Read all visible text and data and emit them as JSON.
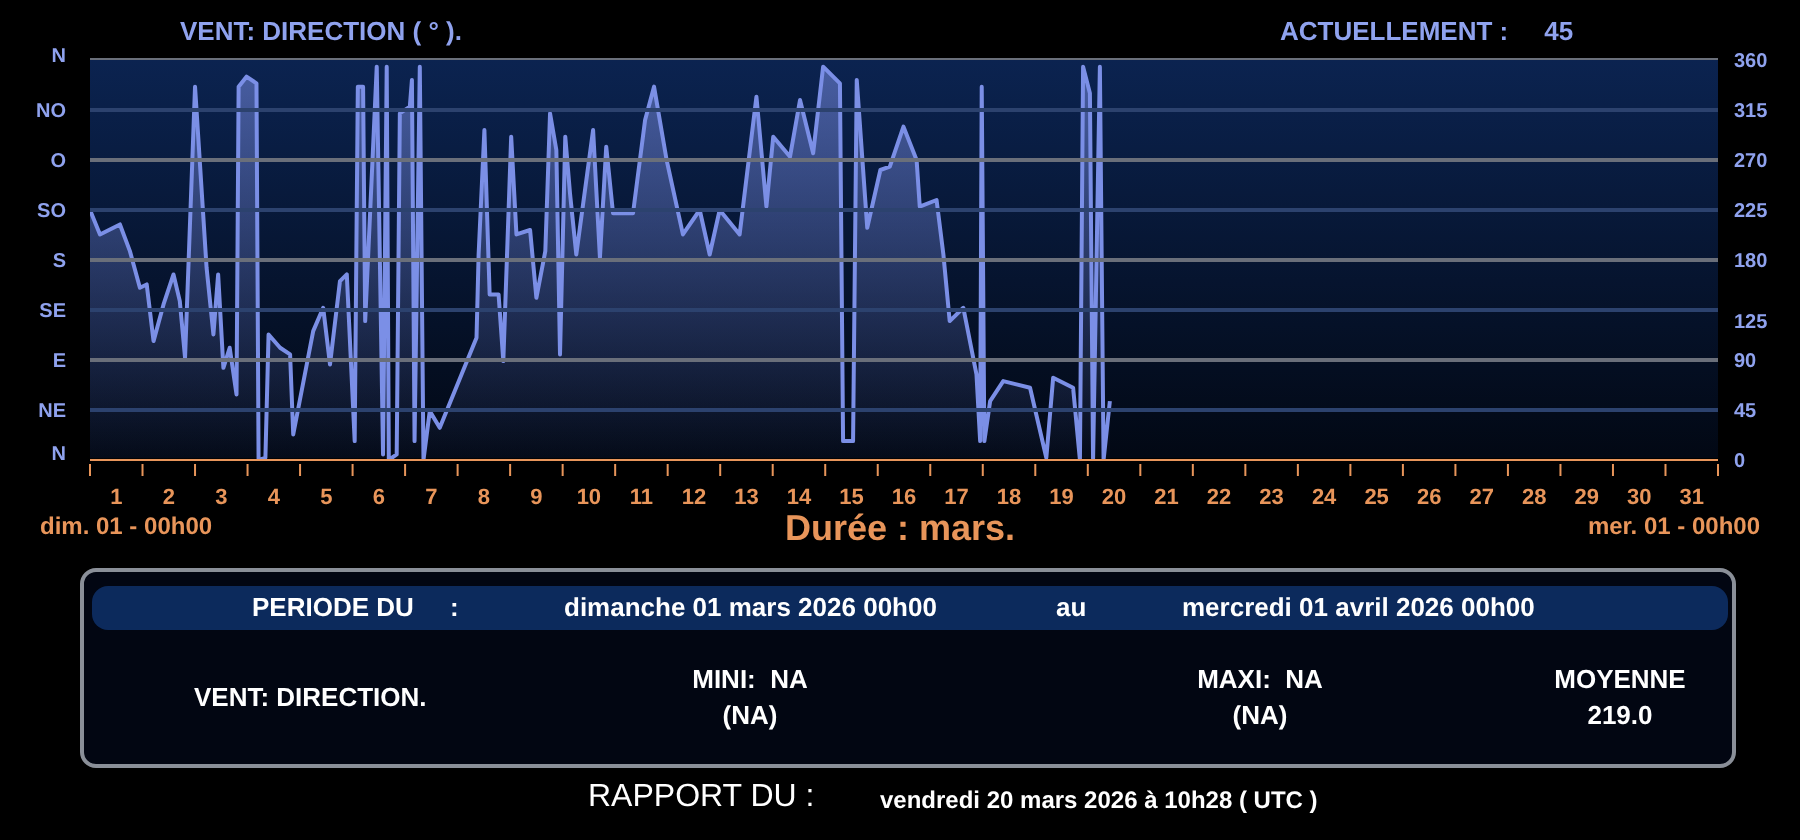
{
  "chart_data": {
    "type": "area",
    "title": "VENT: DIRECTION ( ° ).",
    "xlabel": "Durée : mars.",
    "annotations": [
      "ACTUELLEMENT :     45",
      "dim. 01 - 00h00",
      "mer. 01 - 00h00",
      "PERIODE DU     :",
      "dimanche 01 mars 2026 00h00",
      "au",
      "mercredi 01 avril 2026 00h00",
      "VENT: DIRECTION.",
      "MINI:  NA",
      "(NA)",
      "MAXI:  NA",
      "(NA)",
      "MOYENNE",
      "219.0",
      "RAPPORT DU :",
      "vendredi 20 mars 2026 à 10h28 ( UTC )",
      "N",
      "N"
    ],
    "x": [
      0,
      0.19,
      0.57,
      0.76,
      0.95,
      1.08,
      1.21,
      1.4,
      1.59,
      1.71,
      1.81,
      2.0,
      2.22,
      2.35,
      2.44,
      2.54,
      2.66,
      2.79,
      2.83,
      2.98,
      3.17,
      3.21,
      3.34,
      3.4,
      3.62,
      3.81,
      3.87,
      4.25,
      4.44,
      4.57,
      4.76,
      4.89,
      5.04,
      5.1,
      5.2,
      5.24,
      5.46,
      5.58,
      5.65,
      5.69,
      5.84,
      5.9,
      6.09,
      6.13,
      6.18,
      6.28,
      6.35,
      6.47,
      6.66,
      7.36,
      7.4,
      7.51,
      7.61,
      7.78,
      7.87,
      8.02,
      8.12,
      8.38,
      8.5,
      8.67,
      8.76,
      8.88,
      8.95,
      9.05,
      9.14,
      9.26,
      9.58,
      9.71,
      9.83,
      9.96,
      10.34,
      10.57,
      10.74,
      10.98,
      11.29,
      11.61,
      11.8,
      11.99,
      12.37,
      12.69,
      12.88,
      13.01,
      13.33,
      13.52,
      13.77,
      13.96,
      14.28,
      14.34,
      14.53,
      14.6,
      14.8,
      15.05,
      15.23,
      15.49,
      15.74,
      15.8,
      16.12,
      16.25,
      16.37,
      16.63,
      16.88,
      16.95,
      16.98,
      17.03,
      17.14,
      17.39,
      17.9,
      18.21,
      18.34,
      18.72,
      18.85,
      18.91,
      19.04,
      19.1,
      19.23,
      19.3,
      19.42
    ],
    "series": [
      {
        "color": "#7b8fe6",
        "values": [
          225,
          203,
          212,
          188,
          155,
          158,
          107,
          140,
          167,
          143,
          92,
          336,
          173,
          113,
          167,
          83,
          101,
          59,
          336,
          345,
          339,
          0,
          2,
          113,
          101,
          95,
          23,
          116,
          137,
          86,
          161,
          167,
          17,
          336,
          336,
          125,
          354,
          5,
          354,
          0,
          5,
          312,
          318,
          342,
          17,
          354,
          0,
          44,
          29,
          110,
          185,
          297,
          149,
          149,
          89,
          291,
          203,
          207,
          146,
          188,
          312,
          279,
          95,
          291,
          240,
          185,
          297,
          182,
          282,
          222,
          222,
          306,
          336,
          270,
          203,
          225,
          185,
          225,
          203,
          327,
          228,
          291,
          273,
          324,
          276,
          354,
          339,
          17,
          17,
          342,
          209,
          261,
          264,
          300,
          270,
          228,
          234,
          185,
          125,
          137,
          77,
          17,
          336,
          17,
          53,
          71,
          65,
          2,
          74,
          65,
          0,
          354,
          330,
          0,
          354,
          0,
          53
        ]
      }
    ],
    "xlim": [
      0,
      31
    ],
    "xticks": [
      {
        "value": 0,
        "label": null
      },
      {
        "value": 0.5,
        "label": "1"
      },
      {
        "value": 1,
        "label": null
      },
      {
        "value": 1.5,
        "label": "2"
      },
      {
        "value": 2,
        "label": null
      },
      {
        "value": 2.5,
        "label": "3"
      },
      {
        "value": 3,
        "label": null
      },
      {
        "value": 3.5,
        "label": "4"
      },
      {
        "value": 4,
        "label": null
      },
      {
        "value": 4.5,
        "label": "5"
      },
      {
        "value": 5,
        "label": null
      },
      {
        "value": 5.5,
        "label": "6"
      },
      {
        "value": 6,
        "label": null
      },
      {
        "value": 6.5,
        "label": "7"
      },
      {
        "value": 7,
        "label": null
      },
      {
        "value": 7.5,
        "label": "8"
      },
      {
        "value": 8,
        "label": null
      },
      {
        "value": 8.5,
        "label": "9"
      },
      {
        "value": 9,
        "label": null
      },
      {
        "value": 9.5,
        "label": "10"
      },
      {
        "value": 10,
        "label": null
      },
      {
        "value": 10.5,
        "label": "11"
      },
      {
        "value": 11,
        "label": null
      },
      {
        "value": 11.5,
        "label": "12"
      },
      {
        "value": 12,
        "label": null
      },
      {
        "value": 12.5,
        "label": "13"
      },
      {
        "value": 13,
        "label": null
      },
      {
        "value": 13.5,
        "label": "14"
      },
      {
        "value": 14,
        "label": null
      },
      {
        "value": 14.5,
        "label": "15"
      },
      {
        "value": 15,
        "label": null
      },
      {
        "value": 15.5,
        "label": "16"
      },
      {
        "value": 16,
        "label": null
      },
      {
        "value": 16.5,
        "label": "17"
      },
      {
        "value": 17,
        "label": null
      },
      {
        "value": 17.5,
        "label": "18"
      },
      {
        "value": 18,
        "label": null
      },
      {
        "value": 18.5,
        "label": "19"
      },
      {
        "value": 19,
        "label": null
      },
      {
        "value": 19.5,
        "label": "20"
      },
      {
        "value": 20,
        "label": null
      },
      {
        "value": 20.5,
        "label": "21"
      },
      {
        "value": 21,
        "label": null
      },
      {
        "value": 21.5,
        "label": "22"
      },
      {
        "value": 22,
        "label": null
      },
      {
        "value": 22.5,
        "label": "23"
      },
      {
        "value": 23,
        "label": null
      },
      {
        "value": 23.5,
        "label": "24"
      },
      {
        "value": 24,
        "label": null
      },
      {
        "value": 24.5,
        "label": "25"
      },
      {
        "value": 25,
        "label": null
      },
      {
        "value": 25.5,
        "label": "26"
      },
      {
        "value": 26,
        "label": null
      },
      {
        "value": 26.5,
        "label": "27"
      },
      {
        "value": 27,
        "label": null
      },
      {
        "value": 27.5,
        "label": "28"
      },
      {
        "value": 28,
        "label": null
      },
      {
        "value": 28.5,
        "label": "29"
      },
      {
        "value": 29,
        "label": null
      },
      {
        "value": 29.5,
        "label": "30"
      },
      {
        "value": 30,
        "label": null
      },
      {
        "value": 30.5,
        "label": "31"
      },
      {
        "value": 31,
        "label": null
      }
    ],
    "ylim": [
      0,
      360
    ],
    "yticks": [
      0,
      45,
      90,
      125,
      180,
      225,
      270,
      315,
      360
    ],
    "ref_lines": [
      {
        "axis": "y",
        "value": 45,
        "label": "NE",
        "color": "#2c426e"
      },
      {
        "axis": "y",
        "value": 90,
        "label": "E",
        "color": "#6a6f7a"
      },
      {
        "axis": "y",
        "value": 135,
        "label": "SE",
        "color": "#2c426e"
      },
      {
        "axis": "y",
        "value": 180,
        "label": "S",
        "color": "#6a6f7a"
      },
      {
        "axis": "y",
        "value": 225,
        "label": "SO",
        "color": "#2c426e"
      },
      {
        "axis": "y",
        "value": 270,
        "label": "O",
        "color": "#6a6f7a"
      },
      {
        "axis": "y",
        "value": 315,
        "label": "NO",
        "color": "#2c426e"
      }
    ]
  }
}
